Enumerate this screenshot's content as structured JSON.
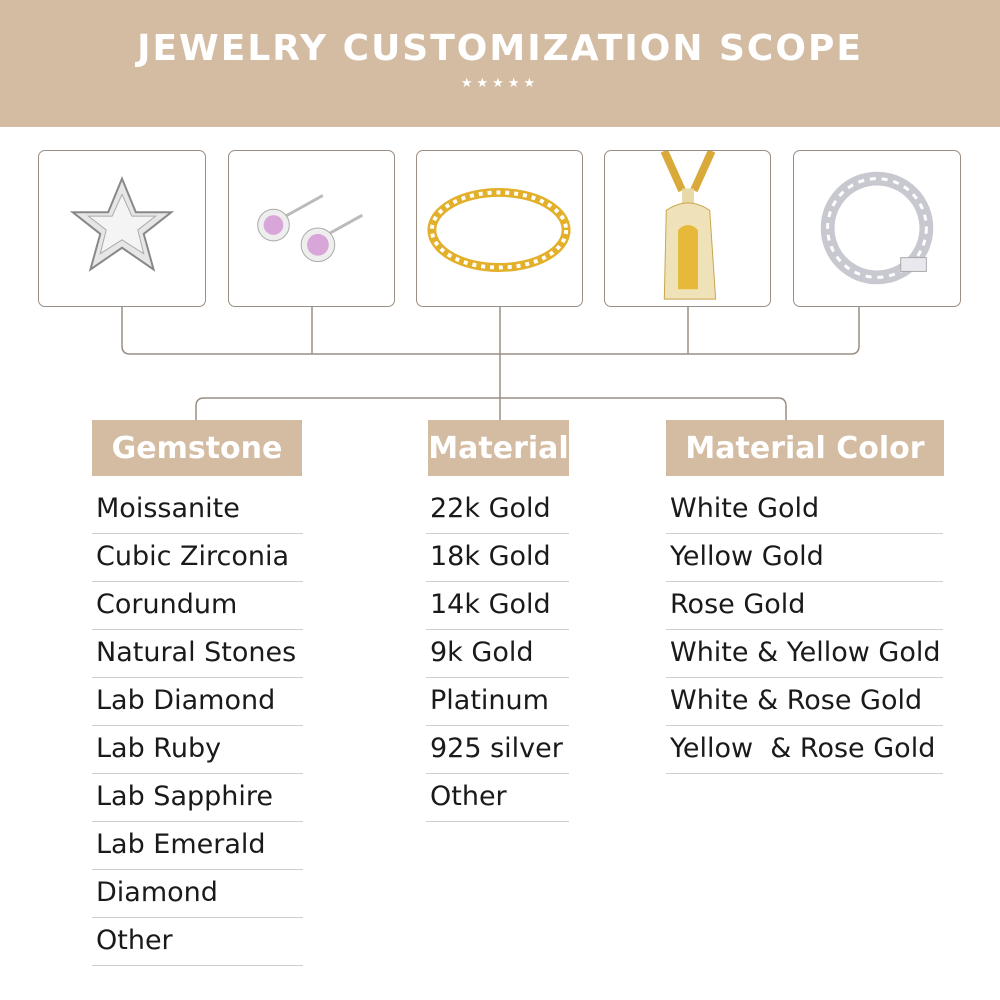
{
  "header": {
    "title": "JEWELRY CUSTOMIZATION SCOPE",
    "stars": "★★★★★"
  },
  "products": [
    {
      "icon": "star-pendant-icon"
    },
    {
      "icon": "pink-stud-earrings-icon"
    },
    {
      "icon": "gold-tennis-bracelet-icon"
    },
    {
      "icon": "jesus-pendant-icon"
    },
    {
      "icon": "silver-cuban-chain-icon"
    }
  ],
  "colors": {
    "accent": "#d4bca3",
    "line": "#9a8e84"
  },
  "gemstone": {
    "label": "Gemstone",
    "items": [
      "Moissanite",
      "Cubic Zirconia",
      "Corundum",
      "Natural Stones",
      "Lab Diamond",
      "Lab Ruby",
      "Lab Sapphire",
      "Lab Emerald",
      "Diamond",
      "Other"
    ]
  },
  "material": {
    "label": "Material",
    "items": [
      "22k Gold",
      "18k Gold",
      "14k Gold",
      "9k Gold",
      "Platinum",
      "925 silver",
      "Other"
    ]
  },
  "material_color": {
    "label": "Material Color",
    "items": [
      "White Gold",
      "Yellow Gold",
      "Rose Gold",
      "White & Yellow Gold",
      "White & Rose Gold",
      "Yellow  & Rose Gold"
    ]
  }
}
